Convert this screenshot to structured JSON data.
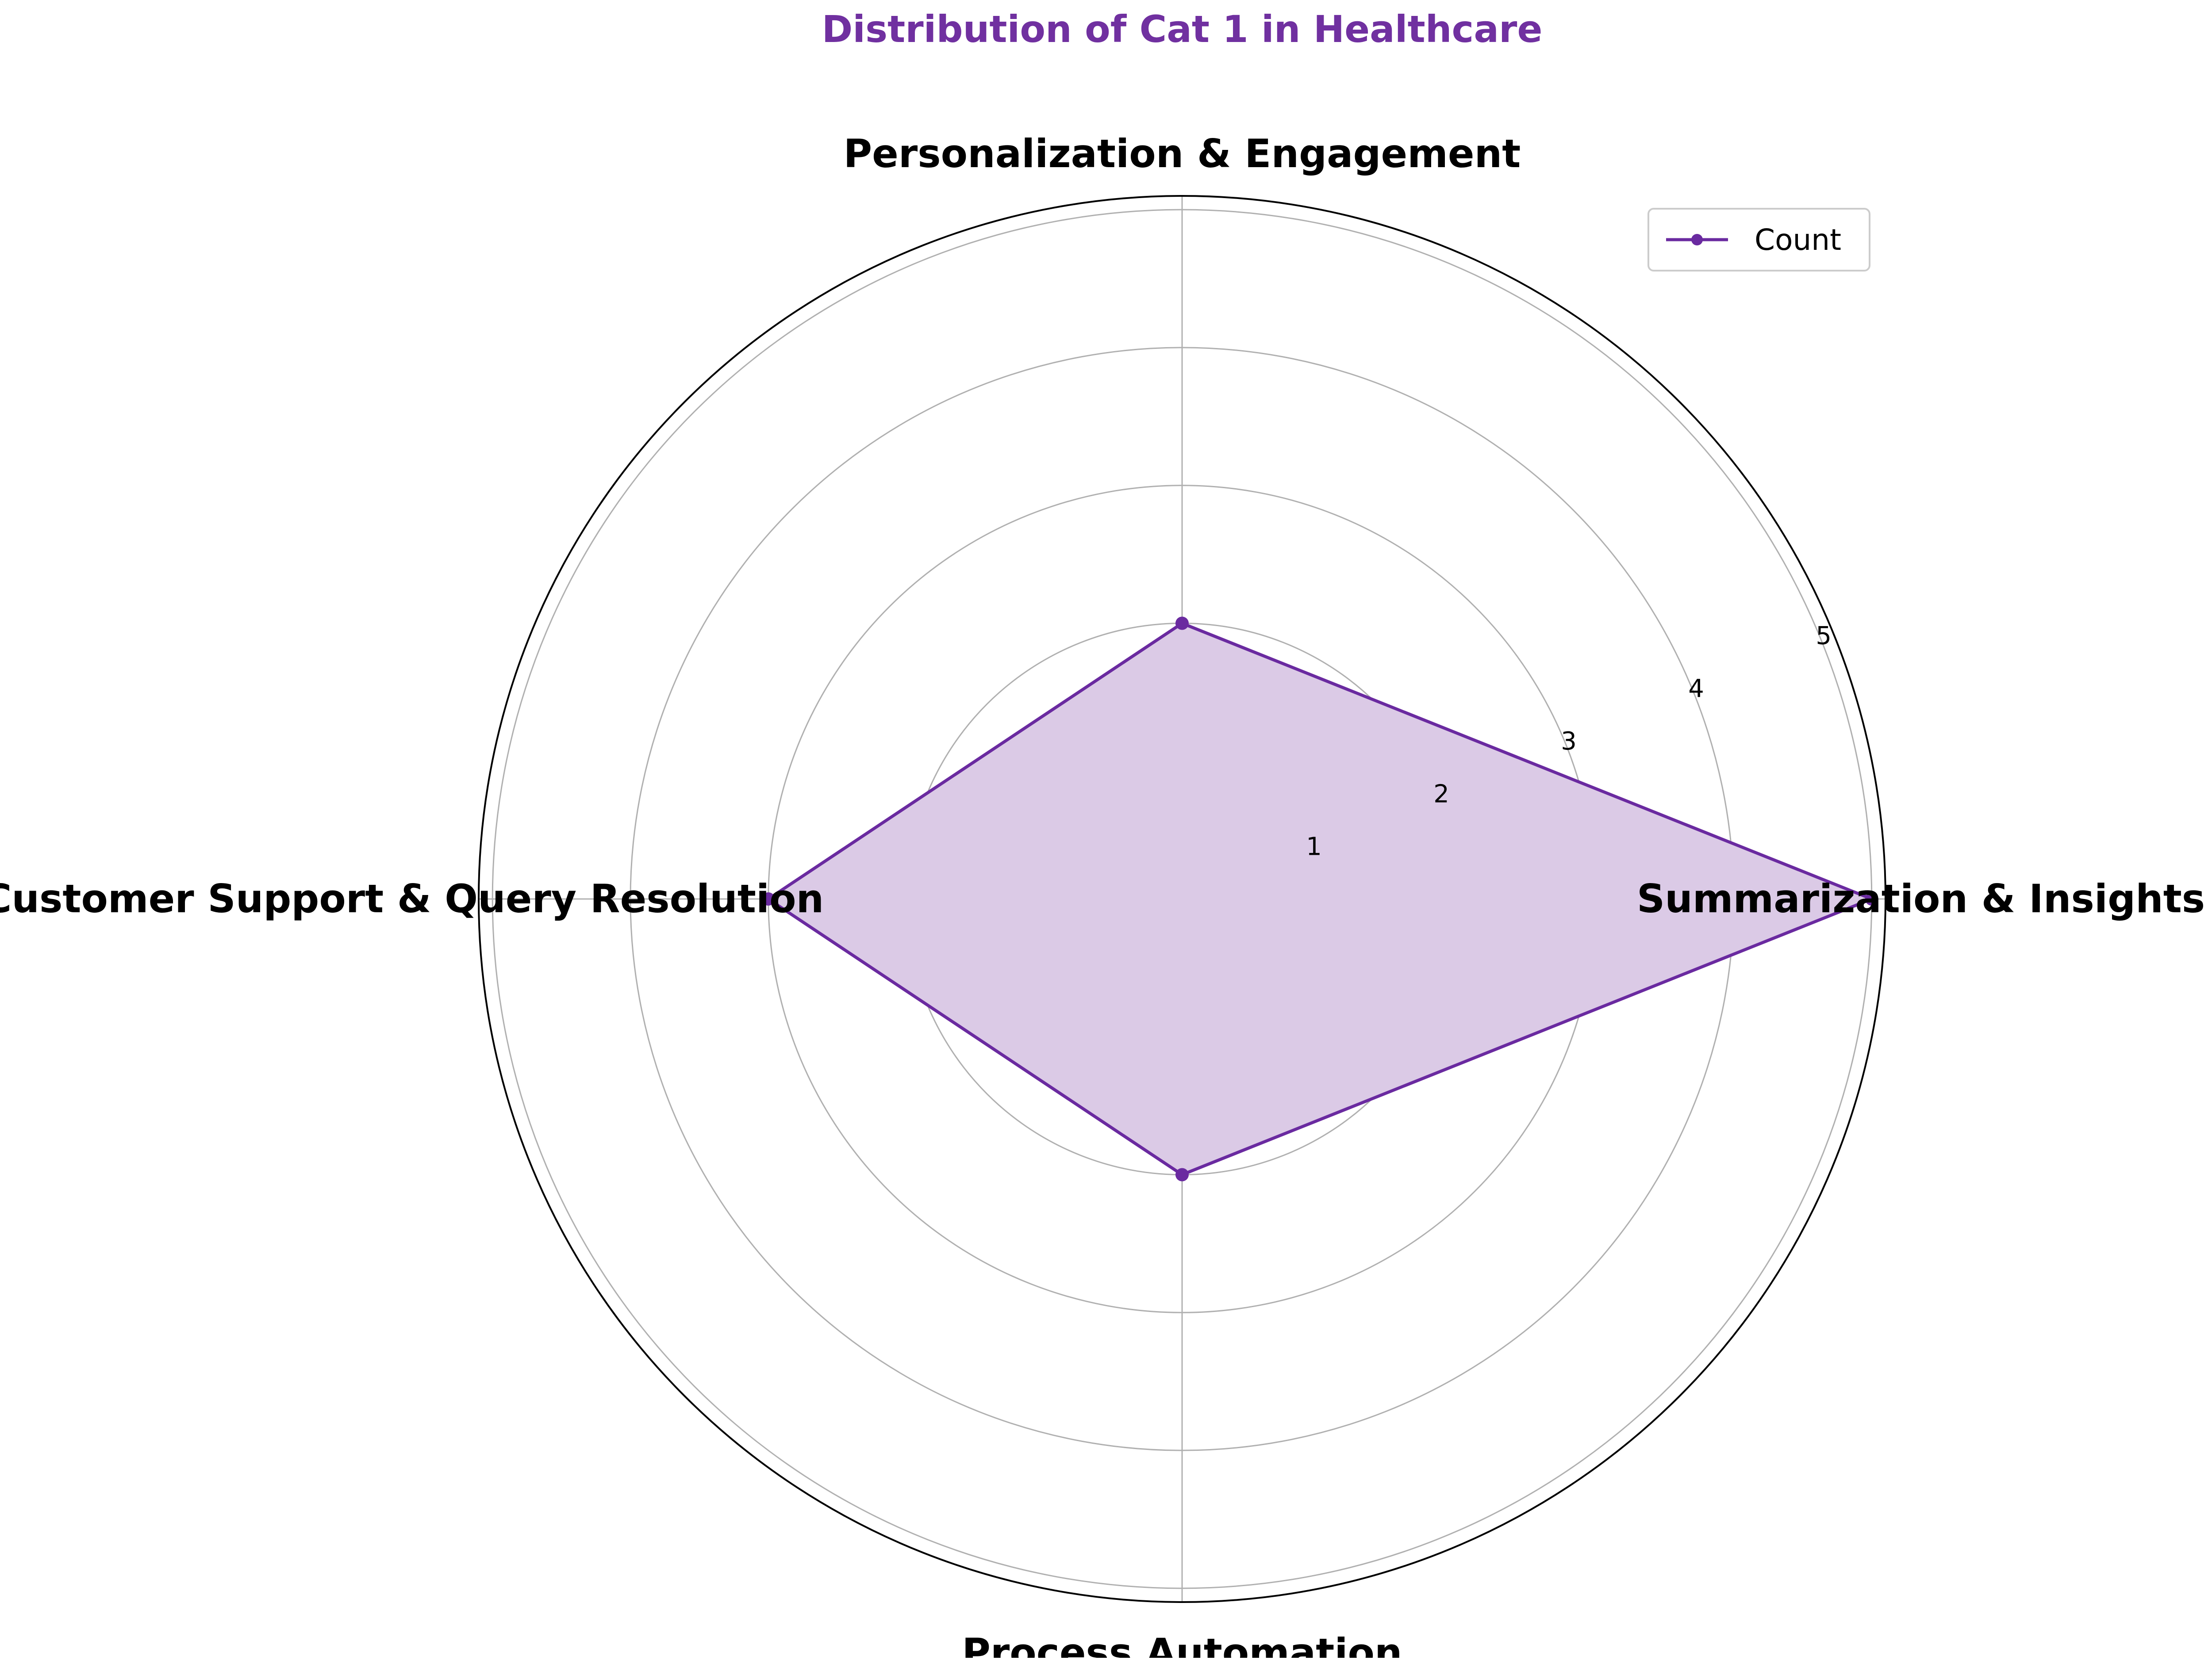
{
  "chart_data": {
    "type": "radar",
    "title": "Distribution of Cat 1 in Healthcare",
    "categories": [
      "Summarization & Insights",
      "Personalization & Engagement",
      "Customer Support & Query Resolution",
      "Process Automation"
    ],
    "series": [
      {
        "name": "Count",
        "values": [
          5,
          2,
          3,
          2
        ]
      }
    ],
    "r_ticks": [
      "1",
      "2",
      "3",
      "4",
      "5"
    ],
    "rlim": [
      0,
      5.1
    ],
    "grid": true,
    "legend_position": "top-right",
    "colors": {
      "title": "#7030a0",
      "line": "#6a2aa0",
      "fill": "#dbcae6",
      "grid": "#b0b0b0",
      "outline": "#000000"
    }
  }
}
